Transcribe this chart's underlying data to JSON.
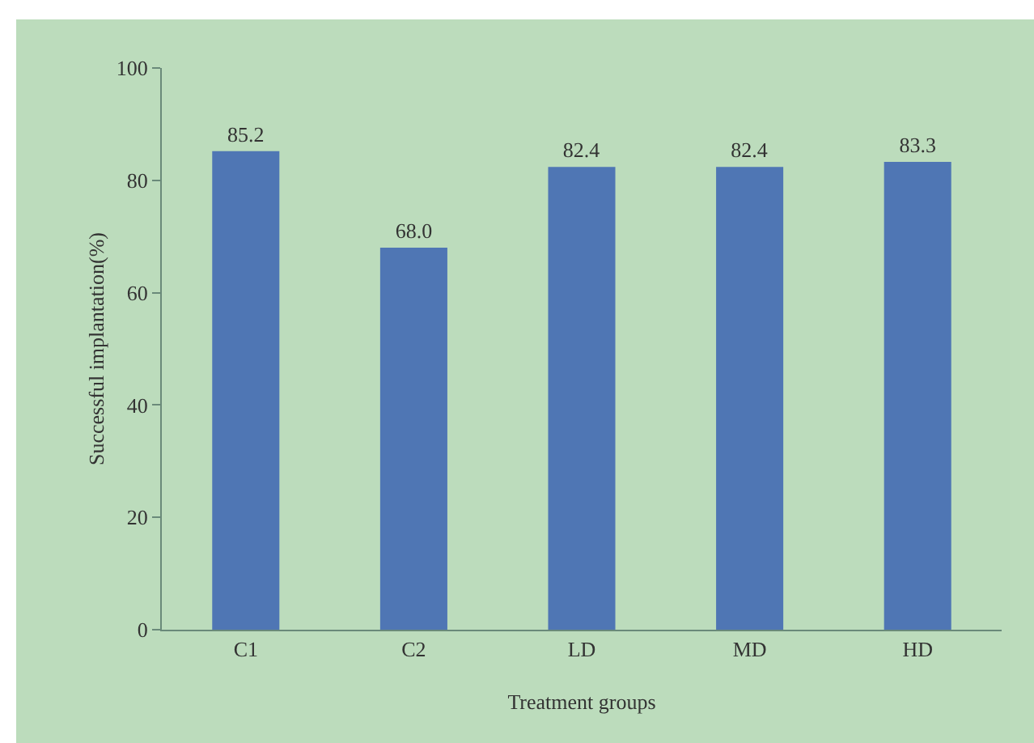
{
  "chart_data": {
    "type": "bar",
    "xlabel": "Treatment groups",
    "ylabel": "Successful implantation(%)",
    "categories": [
      "C1",
      "C2",
      "LD",
      "MD",
      "HD"
    ],
    "values": [
      85.2,
      68.0,
      82.4,
      82.4,
      83.3
    ],
    "color": "#4f76b4",
    "value_labels": [
      "85.2",
      "68.0",
      "82.4",
      "82.4",
      "83.3"
    ],
    "ylim": [
      0,
      100
    ],
    "yticks": [
      0,
      20,
      40,
      60,
      80,
      100
    ],
    "grid": false,
    "legend": false
  }
}
